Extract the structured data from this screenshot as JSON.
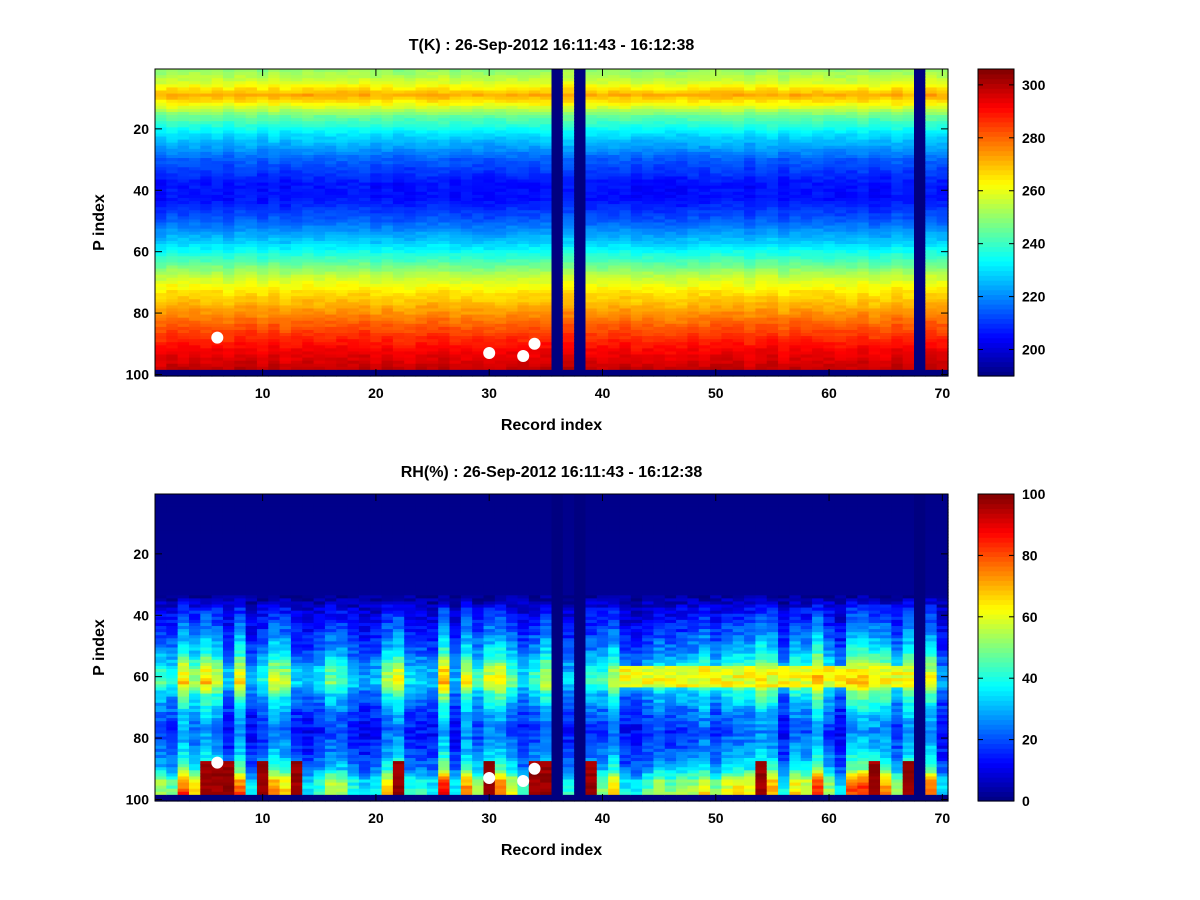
{
  "chart_data": [
    {
      "type": "heatmap",
      "title": "T(K) : 26-Sep-2012 16:11:43 - 16:12:38",
      "xlabel": "Record index",
      "ylabel": "P index",
      "xlim": [
        0.5,
        70.5
      ],
      "ylim": [
        100.5,
        0.5
      ],
      "xticks": [
        10,
        20,
        30,
        40,
        50,
        60,
        70
      ],
      "yticks": [
        20,
        40,
        60,
        80,
        100
      ],
      "colorbar": {
        "min": 190,
        "max": 306,
        "ticks": [
          200,
          220,
          240,
          260,
          280,
          300
        ]
      },
      "colormap": "jet",
      "missing_records": [
        36,
        38,
        68
      ],
      "missing_levels": [
        99,
        100
      ],
      "profile_by_level": [
        {
          "p": 1,
          "v": 250
        },
        {
          "p": 5,
          "v": 258
        },
        {
          "p": 9,
          "v": 272
        },
        {
          "p": 12,
          "v": 262
        },
        {
          "p": 16,
          "v": 245
        },
        {
          "p": 22,
          "v": 230
        },
        {
          "p": 30,
          "v": 215
        },
        {
          "p": 38,
          "v": 206
        },
        {
          "p": 43,
          "v": 206
        },
        {
          "p": 50,
          "v": 215
        },
        {
          "p": 57,
          "v": 228
        },
        {
          "p": 63,
          "v": 242
        },
        {
          "p": 68,
          "v": 255
        },
        {
          "p": 73,
          "v": 265
        },
        {
          "p": 80,
          "v": 275
        },
        {
          "p": 86,
          "v": 284
        },
        {
          "p": 92,
          "v": 292
        },
        {
          "p": 98,
          "v": 298
        }
      ],
      "markers": [
        {
          "record": 6,
          "p": 88
        },
        {
          "record": 30,
          "p": 93
        },
        {
          "record": 33,
          "p": 94
        },
        {
          "record": 34,
          "p": 90
        }
      ]
    },
    {
      "type": "heatmap",
      "title": "RH(%) : 26-Sep-2012 16:11:43 - 16:12:38",
      "xlabel": "Record index",
      "ylabel": "P index",
      "xlim": [
        0.5,
        70.5
      ],
      "ylim": [
        100.5,
        0.5
      ],
      "xticks": [
        10,
        20,
        30,
        40,
        50,
        60,
        70
      ],
      "yticks": [
        20,
        40,
        60,
        80,
        100
      ],
      "colorbar": {
        "min": 0,
        "max": 100,
        "ticks": [
          0,
          20,
          40,
          60,
          80,
          100
        ]
      },
      "colormap": "jet",
      "missing_records": [
        36,
        38,
        68
      ],
      "missing_levels": [
        99,
        100
      ],
      "profile_by_level": [
        {
          "p": 1,
          "v": 1
        },
        {
          "p": 34,
          "v": 2
        },
        {
          "p": 38,
          "v": 12
        },
        {
          "p": 45,
          "v": 20
        },
        {
          "p": 52,
          "v": 30
        },
        {
          "p": 58,
          "v": 45
        },
        {
          "p": 62,
          "v": 50
        },
        {
          "p": 66,
          "v": 35
        },
        {
          "p": 72,
          "v": 25
        },
        {
          "p": 78,
          "v": 20
        },
        {
          "p": 84,
          "v": 25
        },
        {
          "p": 90,
          "v": 35
        },
        {
          "p": 94,
          "v": 55
        },
        {
          "p": 98,
          "v": 60
        }
      ],
      "wet_records": [
        5,
        6,
        7,
        10,
        13,
        22,
        30,
        34,
        35,
        39,
        54,
        64,
        67
      ],
      "markers": [
        {
          "record": 6,
          "p": 88
        },
        {
          "record": 30,
          "p": 93
        },
        {
          "record": 33,
          "p": 94
        },
        {
          "record": 34,
          "p": 90
        }
      ]
    }
  ]
}
